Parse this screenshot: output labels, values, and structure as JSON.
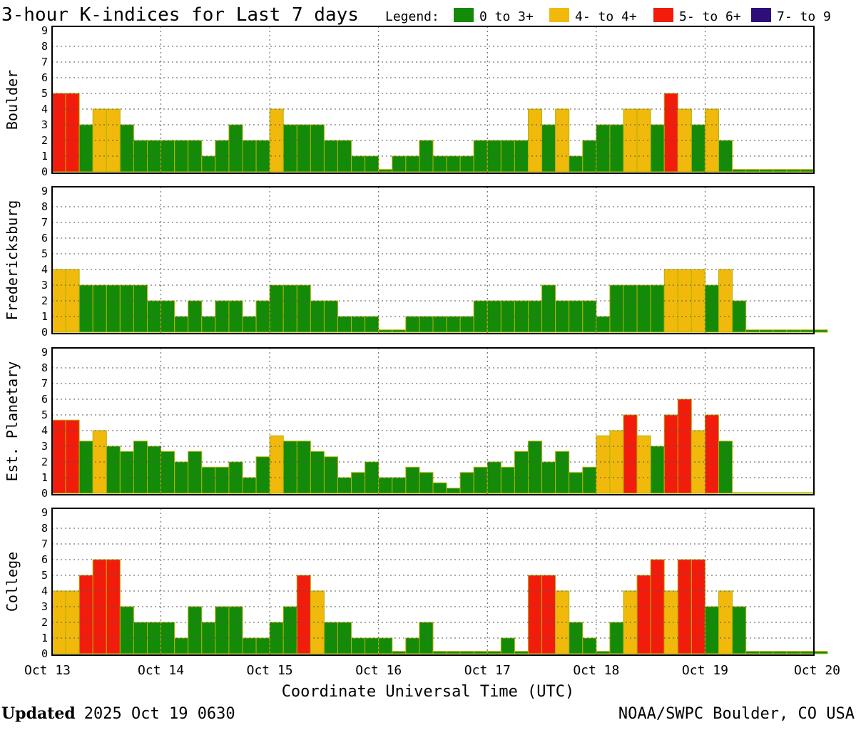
{
  "chart_data": {
    "type": "bar",
    "title": "3-hour K-indices for Last 7 days",
    "legend": {
      "label": "Legend:",
      "items": [
        {
          "label": "0 to 3+",
          "color": "#138a08"
        },
        {
          "label": "4- to 4+",
          "color": "#f0b90b"
        },
        {
          "label": "5- to 6+",
          "color": "#f21c0c"
        },
        {
          "label": "7- to 9",
          "color": "#2e0f7a"
        }
      ]
    },
    "ylim": [
      0,
      9
    ],
    "y_ticks": [
      "0",
      "1",
      "2",
      "3",
      "4",
      "5",
      "6",
      "7",
      "8",
      "9"
    ],
    "x_ticks": [
      "Oct 13",
      "Oct 14",
      "Oct 15",
      "Oct 16",
      "Oct 17",
      "Oct 18",
      "Oct 19",
      "Oct 20"
    ],
    "xlabel": "Coordinate Universal Time (UTC)",
    "grid": true,
    "bar_outline_color": "#b4b400",
    "series": [
      {
        "name": "Boulder",
        "values": [
          5,
          5,
          3,
          4,
          4,
          3,
          2,
          2,
          2,
          2,
          2,
          1,
          2,
          3,
          2,
          2,
          4,
          3,
          3,
          3,
          2,
          2,
          1,
          1,
          0.15,
          1,
          1,
          2,
          1,
          1,
          1,
          2,
          2,
          2,
          2,
          4,
          3,
          4,
          1,
          2,
          3,
          3,
          4,
          4,
          3,
          5,
          4,
          3,
          4,
          2,
          0.15,
          0.15,
          0.15,
          0.15,
          0.15,
          0.15
        ]
      },
      {
        "name": "Fredericksburg",
        "values": [
          4,
          4,
          3,
          3,
          3,
          3,
          3,
          2,
          2,
          1,
          2,
          1,
          2,
          2,
          1,
          2,
          3,
          3,
          3,
          2,
          2,
          1,
          1,
          1,
          0.15,
          0.15,
          1,
          1,
          1,
          1,
          1,
          2,
          2,
          2,
          2,
          2,
          3,
          2,
          2,
          2,
          1,
          3,
          3,
          3,
          3,
          4,
          4,
          4,
          3,
          4,
          2,
          0.15,
          0.15,
          0.15,
          0.15,
          0.15,
          0.15
        ]
      },
      {
        "name": "Est. Planetary",
        "values": [
          4.67,
          4.67,
          3.33,
          4,
          3,
          2.67,
          3.33,
          3,
          2.67,
          2,
          2.67,
          1.67,
          1.67,
          2,
          1,
          2.33,
          3.67,
          3.33,
          3.33,
          2.67,
          2.33,
          1,
          1.33,
          2,
          1,
          1,
          1.67,
          1.33,
          0.67,
          0.33,
          1.33,
          1.67,
          2,
          1.67,
          2.67,
          3.33,
          2,
          2.67,
          1.33,
          1.67,
          3.67,
          4,
          5,
          3.67,
          3,
          5,
          6,
          4,
          5,
          3.33,
          0.05,
          0.05,
          0.05,
          0.05,
          0.05,
          0.05
        ]
      },
      {
        "name": "College",
        "values": [
          4,
          4,
          5,
          6,
          6,
          3,
          2,
          2,
          2,
          1,
          3,
          2,
          3,
          3,
          1,
          1,
          2,
          3,
          5,
          4,
          2,
          2,
          1,
          1,
          1,
          0.15,
          1,
          2,
          0.15,
          0.15,
          0.15,
          0.15,
          0.15,
          1,
          0.15,
          5,
          5,
          4,
          2,
          1,
          0.15,
          2,
          4,
          5,
          6,
          4,
          6,
          6,
          3,
          4,
          3,
          0.15,
          0.15,
          0.15,
          0.15,
          0.15,
          0.15
        ]
      }
    ]
  },
  "footer": {
    "updated_label": "Updated",
    "updated_value": "2025 Oct 19 0630",
    "credit": "NOAA/SWPC Boulder, CO USA"
  }
}
